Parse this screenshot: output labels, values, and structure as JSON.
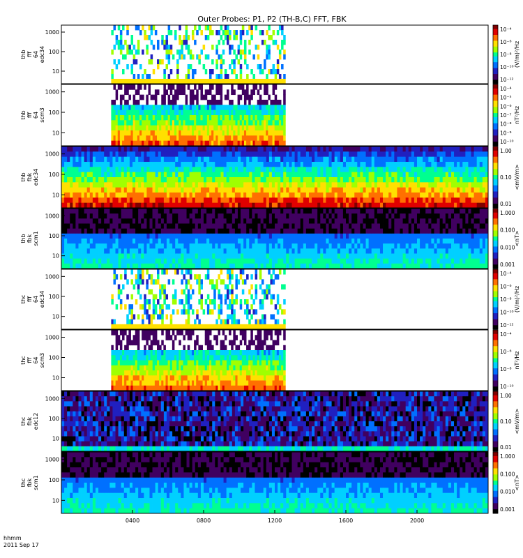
{
  "chart_data": {
    "type": "heatmap",
    "title": "Outer Probes: P1, P2 (TH-B,C) FFT, FBK",
    "x_axis": {
      "tick_labels": [
        "0400",
        "0800",
        "1200",
        "1600",
        "2000"
      ],
      "tick_values_hhmm": [
        400,
        800,
        1200,
        1600,
        2000
      ],
      "range_hours": [
        0,
        24
      ],
      "label_line1": "hhmm",
      "label_line2": "2011 Sep 17"
    },
    "panels": [
      {
        "id": "thb-fff-e4-edc34",
        "ylabel_lines": [
          "thb",
          "fff",
          "64",
          "edc34"
        ],
        "y_ticks": [
          "10",
          "100",
          "1000"
        ],
        "y_scale": "log",
        "data_coverage_hours": [
          2.8,
          12.6
        ],
        "colorbar": {
          "ticks": [
            "10⁻⁴",
            "10⁻⁶",
            "10⁻⁸",
            "10⁻¹⁰",
            "10⁻¹²"
          ],
          "unit": "(V/m)²/Hz"
        }
      },
      {
        "id": "thb-fff-e4-scm3",
        "ylabel_lines": [
          "thb",
          "fff",
          "64",
          "scm3"
        ],
        "y_ticks": [
          "10",
          "100",
          "1000"
        ],
        "y_scale": "log",
        "data_coverage_hours": [
          2.8,
          12.6
        ],
        "colorbar": {
          "ticks": [
            "10⁻⁴",
            "10⁻⁵",
            "10⁻⁶",
            "10⁻⁷",
            "10⁻⁸",
            "10⁻⁹",
            "10⁻¹⁰"
          ],
          "unit": "nT²/Hz"
        }
      },
      {
        "id": "thb-fbk-edc34",
        "ylabel_lines": [
          "thb",
          "fbk",
          "edc34"
        ],
        "y_ticks": [
          "10",
          "100",
          "1000"
        ],
        "y_scale": "log",
        "data_coverage_hours": [
          0,
          24
        ],
        "colorbar": {
          "ticks": [
            "1.00",
            "0.10",
            "0.01"
          ],
          "unit": "<mV/m>"
        }
      },
      {
        "id": "thb-fbk-scm1",
        "ylabel_lines": [
          "thb",
          "fbk",
          "scm1"
        ],
        "y_ticks": [
          "10",
          "100",
          "1000"
        ],
        "y_scale": "log",
        "data_coverage_hours": [
          0,
          24
        ],
        "colorbar": {
          "ticks": [
            "1.000",
            "0.100",
            "0.010",
            "0.001"
          ],
          "unit": "<nT>"
        }
      },
      {
        "id": "thc-fff-e4-edc34",
        "ylabel_lines": [
          "thc",
          "fff",
          "64",
          "edc34"
        ],
        "y_ticks": [
          "10",
          "100",
          "1000"
        ],
        "y_scale": "log",
        "data_coverage_hours": [
          2.8,
          12.6
        ],
        "colorbar": {
          "ticks": [
            "10⁻⁴",
            "10⁻⁶",
            "10⁻⁸",
            "10⁻¹⁰",
            "10⁻¹²"
          ],
          "unit": "(V/m)²/Hz"
        }
      },
      {
        "id": "thc-fff-e4-scm3",
        "ylabel_lines": [
          "thc",
          "fff",
          "64",
          "scm3"
        ],
        "y_ticks": [
          "10",
          "100",
          "1000"
        ],
        "y_scale": "log",
        "data_coverage_hours": [
          2.8,
          12.6
        ],
        "colorbar": {
          "ticks": [
            "10⁻⁴",
            "10⁻⁶",
            "10⁻⁸",
            "10⁻¹⁰"
          ],
          "unit": "nT²/Hz"
        }
      },
      {
        "id": "thc-fbk-edc12",
        "ylabel_lines": [
          "thc",
          "fbk",
          "edc12"
        ],
        "y_ticks": [
          "10",
          "100",
          "1000"
        ],
        "y_scale": "log",
        "data_coverage_hours": [
          0,
          24
        ],
        "colorbar": {
          "ticks": [
            "1.00",
            "0.10",
            "0.01"
          ],
          "unit": "<mV/m>"
        }
      },
      {
        "id": "thc-fbk-scm1",
        "ylabel_lines": [
          "thc",
          "fbk",
          "scm1"
        ],
        "y_ticks": [
          "10",
          "100",
          "1000"
        ],
        "y_scale": "log",
        "data_coverage_hours": [
          0,
          24
        ],
        "colorbar": {
          "ticks": [
            "1.000",
            "0.100",
            "0.010",
            "0.001"
          ],
          "unit": "<nT>"
        }
      }
    ],
    "colormap": [
      "#000000",
      "#400060",
      "#2020c0",
      "#0070ff",
      "#00d0ff",
      "#00ff90",
      "#a0ff00",
      "#ffe000",
      "#ff7000",
      "#e00000",
      "#800000"
    ]
  }
}
